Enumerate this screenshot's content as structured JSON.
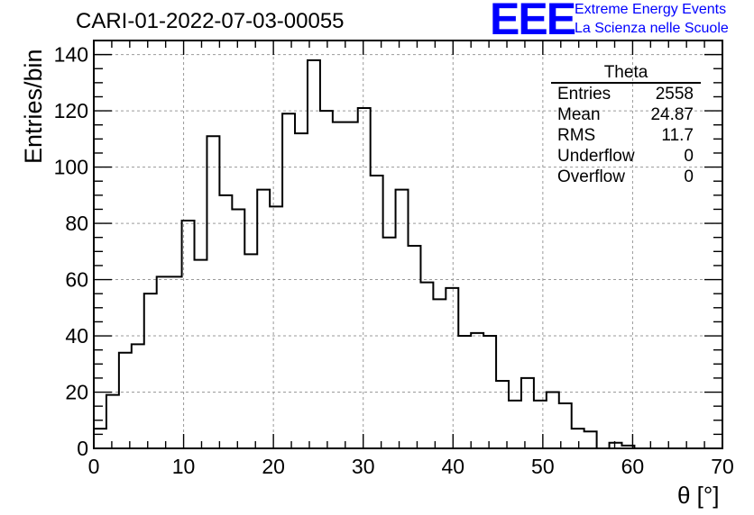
{
  "title": "CARI-01-2022-07-03-00055",
  "logo": {
    "mark": "EEE",
    "line1": "Extreme Energy Events",
    "line2": "La Scienza nelle Scuole",
    "color": "#0000ff"
  },
  "stats_box": {
    "title": "Theta",
    "rows": [
      {
        "label": "Entries",
        "value": "2558"
      },
      {
        "label": "Mean",
        "value": "24.87"
      },
      {
        "label": "RMS",
        "value": "11.7"
      },
      {
        "label": "Underflow",
        "value": "0"
      },
      {
        "label": "Overflow",
        "value": "0"
      }
    ]
  },
  "chart_data": {
    "type": "bar",
    "style": "step-histogram",
    "title": "CARI-01-2022-07-03-00055",
    "xlabel": "θ [°]",
    "ylabel": "Entries/bin",
    "xlim": [
      0,
      70
    ],
    "ylim": [
      0,
      145
    ],
    "bin_width": 1.4,
    "x_ticks": [
      0,
      10,
      20,
      30,
      40,
      50,
      60,
      70
    ],
    "y_ticks": [
      0,
      20,
      40,
      60,
      80,
      100,
      120,
      140
    ],
    "grid": true,
    "legend": "top-right stats box",
    "values": [
      7,
      19,
      34,
      37,
      55,
      61,
      61,
      81,
      67,
      111,
      90,
      85,
      69,
      92,
      86,
      119,
      112,
      138,
      120,
      116,
      116,
      121,
      97,
      75,
      92,
      72,
      59,
      53,
      57,
      40,
      41,
      40,
      24,
      17,
      25,
      17,
      20,
      16,
      7,
      6,
      0,
      2,
      1,
      0,
      0,
      0,
      0,
      0,
      0,
      0
    ],
    "line_color": "#000000",
    "grid_color": "#9a9a9a"
  }
}
